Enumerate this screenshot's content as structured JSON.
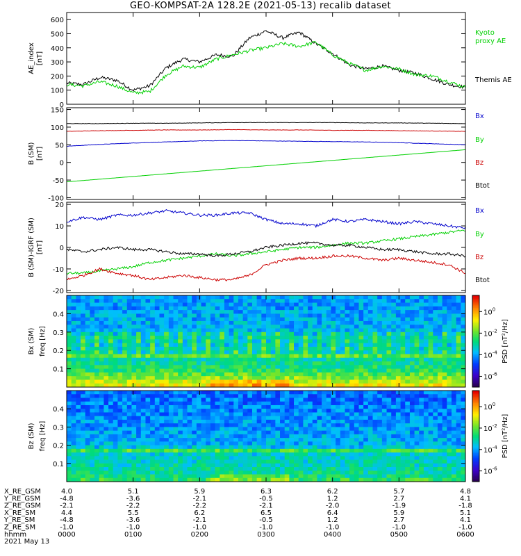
{
  "title": "GEO-KOMPSAT-2A 128.2E (2021-05-13) recalib dataset",
  "x_axis": {
    "range_hours": [
      0,
      6
    ],
    "ticks_hours": [
      0,
      1,
      2,
      3,
      4,
      5,
      6
    ]
  },
  "chart_data": [
    {
      "id": "ae",
      "type": "line",
      "ylabel": [
        "AE_index",
        "[nT]"
      ],
      "ylim": [
        0,
        650
      ],
      "yticks": [
        0,
        100,
        200,
        300,
        400,
        500,
        600
      ],
      "series": [
        {
          "name": "Themis AE",
          "color": "#000000",
          "x": [
            0,
            0.25,
            0.5,
            0.75,
            1.0,
            1.25,
            1.5,
            1.75,
            2.0,
            2.25,
            2.5,
            2.75,
            3.0,
            3.25,
            3.5,
            3.75,
            4.0,
            4.25,
            4.5,
            4.75,
            5.0,
            5.25,
            5.5,
            5.75,
            6.0
          ],
          "y": [
            150,
            140,
            190,
            170,
            100,
            130,
            260,
            320,
            300,
            350,
            340,
            470,
            520,
            470,
            510,
            430,
            360,
            280,
            250,
            270,
            240,
            220,
            180,
            140,
            120
          ]
        },
        {
          "name": "Kyoto proxy AE",
          "color": "#00d000",
          "x": [
            0,
            0.25,
            0.5,
            0.75,
            1.0,
            1.25,
            1.5,
            1.75,
            2.0,
            2.25,
            2.5,
            2.75,
            3.0,
            3.25,
            3.5,
            3.75,
            4.0,
            4.25,
            4.5,
            4.75,
            5.0,
            5.25,
            5.5,
            5.75,
            6.0
          ],
          "y": [
            140,
            130,
            160,
            130,
            80,
            90,
            210,
            270,
            260,
            320,
            350,
            380,
            400,
            430,
            410,
            440,
            350,
            290,
            240,
            270,
            250,
            210,
            200,
            160,
            120
          ]
        }
      ]
    },
    {
      "id": "b_sm",
      "type": "line",
      "ylabel": [
        "B (SM)",
        "[nT]"
      ],
      "ylim": [
        -105,
        155
      ],
      "yticks": [
        -100,
        -50,
        0,
        50,
        100,
        150
      ],
      "series": [
        {
          "name": "Bx",
          "color": "#0000cc",
          "x": [
            0,
            0.5,
            1,
            1.5,
            2,
            2.5,
            3,
            3.5,
            4,
            4.5,
            5,
            5.5,
            6
          ],
          "y": [
            46,
            51,
            55,
            58,
            61,
            62,
            61,
            60,
            59,
            58,
            56,
            53,
            50
          ]
        },
        {
          "name": "By",
          "color": "#00d000",
          "x": [
            0,
            6
          ],
          "y": [
            -55,
            36
          ]
        },
        {
          "name": "Bz",
          "color": "#cc0000",
          "x": [
            0,
            0.5,
            1,
            1.5,
            2,
            2.5,
            3,
            3.5,
            4,
            4.5,
            5,
            5.5,
            6
          ],
          "y": [
            88,
            90,
            91,
            92,
            92,
            93,
            92,
            92,
            91,
            91,
            90,
            89,
            88
          ]
        },
        {
          "name": "Btot",
          "color": "#000000",
          "x": [
            0,
            0.5,
            1,
            1.5,
            2,
            2.5,
            3,
            3.5,
            4,
            4.5,
            5,
            5.5,
            6
          ],
          "y": [
            110,
            110,
            111,
            111,
            112,
            113,
            113,
            113,
            113,
            112,
            112,
            111,
            110
          ]
        }
      ]
    },
    {
      "id": "b_res",
      "type": "line",
      "ylabel": [
        "B (SM)-IGRF (SM)",
        "[nT]"
      ],
      "ylim": [
        -21,
        21
      ],
      "yticks": [
        -20,
        -10,
        0,
        10,
        20
      ],
      "series": [
        {
          "name": "Bx",
          "color": "#0000cc",
          "x": [
            0,
            0.25,
            0.5,
            0.75,
            1.0,
            1.25,
            1.5,
            1.75,
            2.0,
            2.25,
            2.5,
            2.75,
            3.0,
            3.25,
            3.5,
            3.75,
            4.0,
            4.25,
            4.5,
            4.75,
            5.0,
            5.25,
            5.5,
            5.75,
            6.0
          ],
          "y": [
            12,
            14,
            13,
            15,
            15,
            16,
            17,
            16,
            15,
            15,
            16,
            16,
            13,
            11,
            11,
            10,
            13,
            12,
            13,
            12,
            11,
            12,
            11,
            10,
            9
          ]
        },
        {
          "name": "By",
          "color": "#00d000",
          "x": [
            0,
            0.25,
            0.5,
            0.75,
            1.0,
            1.25,
            1.5,
            1.75,
            2.0,
            2.25,
            2.5,
            2.75,
            3.0,
            3.25,
            3.5,
            3.75,
            4.0,
            4.25,
            4.5,
            4.75,
            5.0,
            5.25,
            5.5,
            5.75,
            6.0
          ],
          "y": [
            -12,
            -12,
            -11,
            -10,
            -9,
            -7,
            -6,
            -5,
            -4,
            -3,
            -4,
            -3,
            -2,
            -1,
            0,
            0,
            1,
            2,
            2,
            3,
            4,
            5,
            6,
            7,
            8
          ]
        },
        {
          "name": "Bz",
          "color": "#cc0000",
          "x": [
            0,
            0.25,
            0.5,
            0.75,
            1.0,
            1.25,
            1.5,
            1.75,
            2.0,
            2.25,
            2.5,
            2.75,
            3.0,
            3.25,
            3.5,
            3.75,
            4.0,
            4.25,
            4.5,
            4.75,
            5.0,
            5.25,
            5.5,
            5.75,
            6.0
          ],
          "y": [
            -15,
            -13,
            -10,
            -12,
            -13,
            -15,
            -14,
            -13,
            -14,
            -15,
            -15,
            -13,
            -8,
            -6,
            -5,
            -5,
            -4,
            -4,
            -5,
            -6,
            -5,
            -6,
            -7,
            -8,
            -12
          ]
        },
        {
          "name": "Btot",
          "color": "#000000",
          "x": [
            0,
            0.25,
            0.5,
            0.75,
            1.0,
            1.25,
            1.5,
            1.75,
            2.0,
            2.25,
            2.5,
            2.75,
            3.0,
            3.25,
            3.5,
            3.75,
            4.0,
            4.25,
            4.5,
            4.75,
            5.0,
            5.25,
            5.5,
            5.75,
            6.0
          ],
          "y": [
            -1,
            -2,
            -1,
            0,
            -1,
            -1,
            -2,
            -3,
            -3,
            -4,
            -3,
            -2,
            0,
            1,
            2,
            2,
            1,
            1,
            0,
            -1,
            -1,
            -2,
            -3,
            -3,
            -4
          ]
        }
      ]
    },
    {
      "id": "bx_psd",
      "type": "heatmap",
      "ylabel": [
        "Bx (SM)",
        "freq [Hz]"
      ],
      "ylim": [
        0,
        0.5
      ],
      "yticks": [
        0.1,
        0.2,
        0.3,
        0.4
      ],
      "freq_bins": [
        0.49,
        0.47,
        0.45,
        0.43,
        0.41,
        0.39,
        0.37,
        0.35,
        0.33,
        0.31,
        0.29,
        0.27,
        0.25,
        0.23,
        0.21,
        0.19,
        0.175,
        0.16,
        0.14,
        0.12,
        0.1,
        0.08,
        0.06,
        0.04,
        0.02
      ],
      "log10_psd_profile": [
        -4.0,
        -4.0,
        -4.0,
        -4.0,
        -3.9,
        -3.9,
        -3.9,
        -3.8,
        -3.8,
        -3.7,
        -3.6,
        -3.4,
        -3.4,
        -3.5,
        -3.4,
        -3.3,
        -2.0,
        -3.0,
        -2.8,
        -2.7,
        -2.5,
        -2.0,
        -1.6,
        -1.2,
        -0.8
      ],
      "colorbar": {
        "label": "PSD [nT²/Hz]",
        "range_log10": [
          -7,
          1.5
        ],
        "ticks_log10": [
          0,
          -2,
          -4,
          -6
        ]
      }
    },
    {
      "id": "bz_psd",
      "type": "heatmap",
      "ylabel": [
        "Bz (SM)",
        "freq [Hz]"
      ],
      "ylim": [
        0,
        0.5
      ],
      "yticks": [
        0.1,
        0.2,
        0.3,
        0.4
      ],
      "freq_bins": [
        0.49,
        0.47,
        0.45,
        0.43,
        0.41,
        0.39,
        0.37,
        0.35,
        0.33,
        0.31,
        0.29,
        0.27,
        0.25,
        0.23,
        0.21,
        0.19,
        0.175,
        0.16,
        0.14,
        0.12,
        0.1,
        0.08,
        0.06,
        0.04,
        0.02
      ],
      "log10_psd_profile": [
        -4.5,
        -4.5,
        -4.4,
        -4.4,
        -4.3,
        -4.3,
        -4.2,
        -4.2,
        -4.1,
        -4.1,
        -4.0,
        -4.0,
        -3.9,
        -3.9,
        -3.8,
        -3.6,
        -2.2,
        -3.4,
        -3.3,
        -3.3,
        -3.2,
        -3.1,
        -3.0,
        -2.8,
        -2.4
      ],
      "colorbar": {
        "label": "PSD [nT²/Hz]",
        "range_log10": [
          -7,
          1.5
        ],
        "ticks_log10": [
          0,
          -2,
          -4,
          -6
        ]
      }
    }
  ],
  "legends": {
    "ae": [
      {
        "text": "Kyoto",
        "color": "#00d000"
      },
      {
        "text": "proxy AE",
        "color": "#00d000"
      },
      {
        "text": "Themis AE",
        "color": "#000000"
      }
    ],
    "b_sm": [
      {
        "text": "Bx",
        "color": "#0000cc"
      },
      {
        "text": "By",
        "color": "#00d000"
      },
      {
        "text": "Bz",
        "color": "#cc0000"
      },
      {
        "text": "Btot",
        "color": "#000000"
      }
    ],
    "b_res": [
      {
        "text": "Bx",
        "color": "#0000cc"
      },
      {
        "text": "By",
        "color": "#00d000"
      },
      {
        "text": "Bz",
        "color": "#cc0000"
      },
      {
        "text": "Btot",
        "color": "#000000"
      }
    ]
  },
  "ephemeris": {
    "row_labels": [
      "X_RE_GSM",
      "Y_RE_GSM",
      "Z_RE_GSM",
      "X_RE_SM",
      "Y_RE_SM",
      "Z_RE_SM",
      "hhmm"
    ],
    "columns": [
      [
        "4.0",
        "-4.8",
        "-2.1",
        "4.4",
        "-4.8",
        "-1.0",
        "0000"
      ],
      [
        "5.1",
        "-3.6",
        "-2.2",
        "5.5",
        "-3.6",
        "-1.0",
        "0100"
      ],
      [
        "5.9",
        "-2.1",
        "-2.2",
        "6.2",
        "-2.1",
        "-1.0",
        "0200"
      ],
      [
        "6.3",
        "-0.5",
        "-2.1",
        "6.5",
        "-0.5",
        "-1.0",
        "0300"
      ],
      [
        "6.2",
        "1.2",
        "-2.0",
        "6.4",
        "1.2",
        "-1.0",
        "0400"
      ],
      [
        "5.7",
        "2.7",
        "-1.9",
        "5.9",
        "2.7",
        "-1.0",
        "0500"
      ],
      [
        "4.8",
        "4.1",
        "-1.8",
        "5.1",
        "4.1",
        "-1.0",
        "0600"
      ]
    ],
    "date": "2021 May 13"
  }
}
